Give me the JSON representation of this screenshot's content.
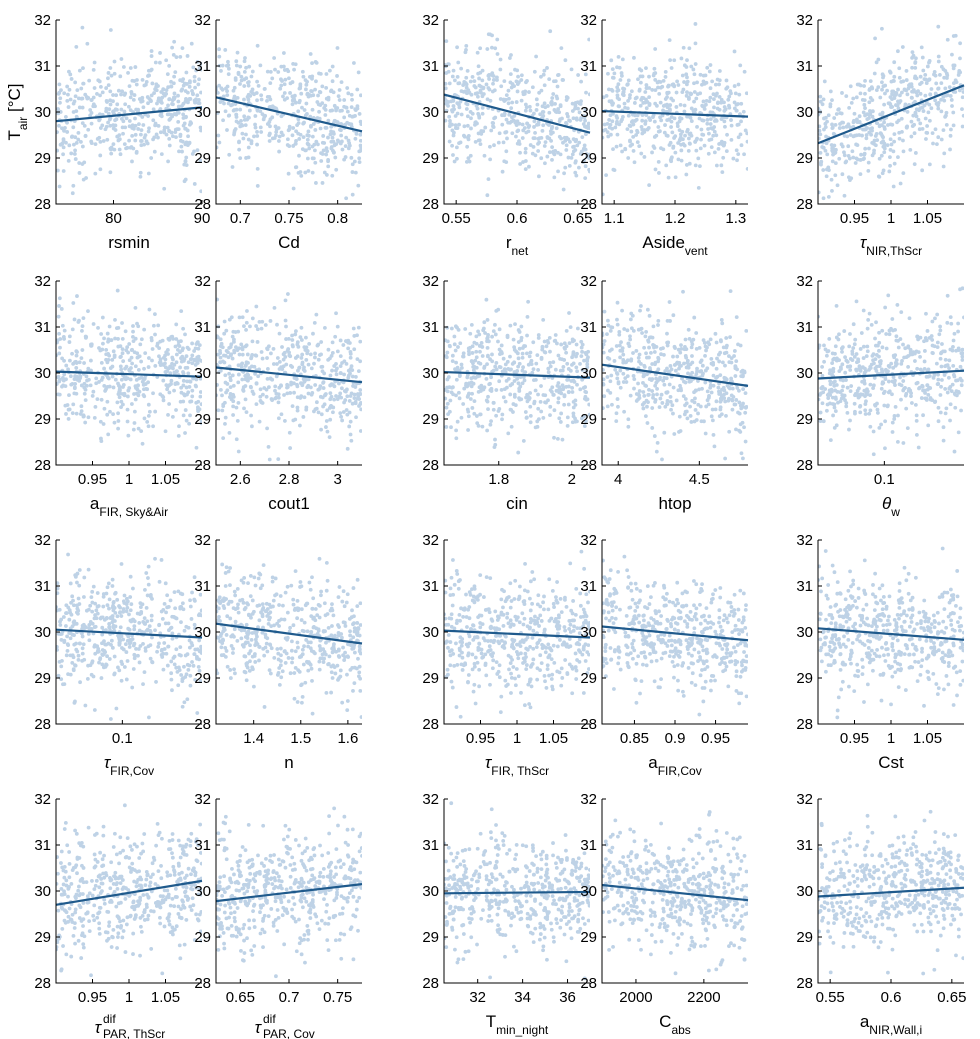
{
  "figure": {
    "ylabel_main": "T",
    "ylabel_sub": "air",
    "ylabel_tail": " [°C]",
    "points_per_panel": 500
  },
  "chart_data": [
    {
      "type": "scatter",
      "xlabel": {
        "main": "rsmin"
      },
      "xlim": [
        73.5,
        90
      ],
      "xticks": [
        80,
        90
      ],
      "ylim": [
        28,
        32
      ],
      "yticks": [
        28,
        29,
        30,
        31,
        32
      ],
      "trend": [
        [
          73.5,
          29.8
        ],
        [
          90,
          30.1
        ]
      ]
    },
    {
      "type": "scatter",
      "xlabel": {
        "main": "Cd"
      },
      "xlim": [
        0.675,
        0.825
      ],
      "xticks": [
        0.7,
        0.75,
        0.8
      ],
      "ylim": [
        28,
        32
      ],
      "yticks": [
        28,
        29,
        30,
        31,
        32
      ],
      "trend": [
        [
          0.675,
          30.32
        ],
        [
          0.825,
          29.58
        ]
      ]
    },
    {
      "type": "scatter",
      "xlabel": {
        "main": "r",
        "sub": "net"
      },
      "xlim": [
        0.54,
        0.66
      ],
      "xticks": [
        0.55,
        0.6,
        0.65
      ],
      "ylim": [
        28,
        32
      ],
      "yticks": [
        28,
        29,
        30,
        31,
        32
      ],
      "trend": [
        [
          0.54,
          30.38
        ],
        [
          0.66,
          29.55
        ]
      ]
    },
    {
      "type": "scatter",
      "xlabel": {
        "main": "Aside",
        "sub": "vent"
      },
      "xlim": [
        1.08,
        1.32
      ],
      "xticks": [
        1.1,
        1.2,
        1.3
      ],
      "ylim": [
        28,
        32
      ],
      "yticks": [
        28,
        29,
        30,
        31,
        32
      ],
      "trend": [
        [
          1.08,
          30.02
        ],
        [
          1.32,
          29.9
        ]
      ]
    },
    {
      "type": "scatter",
      "xlabel": {
        "main": "τ",
        "sub": "NIR,ThScr",
        "italic": true
      },
      "xlim": [
        0.9,
        1.1
      ],
      "xticks": [
        0.95,
        1,
        1.05
      ],
      "ylim": [
        28,
        32
      ],
      "yticks": [
        28,
        29,
        30,
        31,
        32
      ],
      "trend": [
        [
          0.9,
          29.32
        ],
        [
          1.1,
          30.58
        ]
      ]
    },
    {
      "type": "scatter",
      "xlabel": {
        "main": "a",
        "sub": "FIR, Sky&Air"
      },
      "xlim": [
        0.9,
        1.1
      ],
      "xticks": [
        0.95,
        1,
        1.05
      ],
      "ylim": [
        28,
        32
      ],
      "yticks": [
        28,
        29,
        30,
        31,
        32
      ],
      "trend": [
        [
          0.9,
          30.03
        ],
        [
          1.1,
          29.92
        ]
      ]
    },
    {
      "type": "scatter",
      "xlabel": {
        "main": "cout1"
      },
      "xlim": [
        2.5,
        3.1
      ],
      "xticks": [
        2.6,
        2.8,
        3
      ],
      "ylim": [
        28,
        32
      ],
      "yticks": [
        28,
        29,
        30,
        31,
        32
      ],
      "trend": [
        [
          2.5,
          30.12
        ],
        [
          3.1,
          29.8
        ]
      ]
    },
    {
      "type": "scatter",
      "xlabel": {
        "main": "cin"
      },
      "xlim": [
        1.65,
        2.05
      ],
      "xticks": [
        1.8,
        2
      ],
      "ylim": [
        28,
        32
      ],
      "yticks": [
        28,
        29,
        30,
        31,
        32
      ],
      "trend": [
        [
          1.65,
          30.02
        ],
        [
          2.05,
          29.9
        ]
      ]
    },
    {
      "type": "scatter",
      "xlabel": {
        "main": "htop"
      },
      "xlim": [
        3.9,
        4.8
      ],
      "xticks": [
        4,
        4.5
      ],
      "ylim": [
        28,
        32
      ],
      "yticks": [
        28,
        29,
        30,
        31,
        32
      ],
      "trend": [
        [
          3.9,
          30.18
        ],
        [
          4.8,
          29.72
        ]
      ]
    },
    {
      "type": "scatter",
      "xlabel": {
        "main": "θ",
        "sub": "w",
        "italic": true
      },
      "xlim": [
        0.075,
        0.13
      ],
      "xticks": [
        0.1
      ],
      "ylim": [
        28,
        32
      ],
      "yticks": [
        28,
        29,
        30,
        31,
        32
      ],
      "trend": [
        [
          0.075,
          29.88
        ],
        [
          0.13,
          30.05
        ]
      ]
    },
    {
      "type": "scatter",
      "xlabel": {
        "main": "τ",
        "sub": "FIR,Cov",
        "italic": true
      },
      "xlim": [
        0.075,
        0.13
      ],
      "xticks": [
        0.1
      ],
      "ylim": [
        28,
        32
      ],
      "yticks": [
        28,
        29,
        30,
        31,
        32
      ],
      "trend": [
        [
          0.075,
          30.05
        ],
        [
          0.13,
          29.88
        ]
      ]
    },
    {
      "type": "scatter",
      "xlabel": {
        "main": "n"
      },
      "xlim": [
        1.32,
        1.63
      ],
      "xticks": [
        1.4,
        1.5,
        1.6
      ],
      "ylim": [
        28,
        32
      ],
      "yticks": [
        28,
        29,
        30,
        31,
        32
      ],
      "trend": [
        [
          1.32,
          30.18
        ],
        [
          1.63,
          29.75
        ]
      ]
    },
    {
      "type": "scatter",
      "xlabel": {
        "main": "τ",
        "sub": "FIR, ThScr",
        "italic": true
      },
      "xlim": [
        0.9,
        1.1
      ],
      "xticks": [
        0.95,
        1,
        1.05
      ],
      "ylim": [
        28,
        32
      ],
      "yticks": [
        28,
        29,
        30,
        31,
        32
      ],
      "trend": [
        [
          0.9,
          30.03
        ],
        [
          1.1,
          29.88
        ]
      ]
    },
    {
      "type": "scatter",
      "xlabel": {
        "main": "a",
        "sub": "FIR,Cov"
      },
      "xlim": [
        0.81,
        0.99
      ],
      "xticks": [
        0.85,
        0.9,
        0.95
      ],
      "ylim": [
        28,
        32
      ],
      "yticks": [
        28,
        29,
        30,
        31,
        32
      ],
      "trend": [
        [
          0.81,
          30.12
        ],
        [
          0.99,
          29.82
        ]
      ]
    },
    {
      "type": "scatter",
      "xlabel": {
        "main": "Cst"
      },
      "xlim": [
        0.9,
        1.1
      ],
      "xticks": [
        0.95,
        1,
        1.05
      ],
      "ylim": [
        28,
        32
      ],
      "yticks": [
        28,
        29,
        30,
        31,
        32
      ],
      "trend": [
        [
          0.9,
          30.08
        ],
        [
          1.1,
          29.83
        ]
      ]
    },
    {
      "type": "scatter",
      "xlabel": {
        "main": "τ",
        "sup": "dif",
        "sub": "PAR, ThScr",
        "italic": true
      },
      "xlim": [
        0.9,
        1.1
      ],
      "xticks": [
        0.95,
        1,
        1.05
      ],
      "ylim": [
        28,
        32
      ],
      "yticks": [
        28,
        29,
        30,
        31,
        32
      ],
      "trend": [
        [
          0.9,
          29.7
        ],
        [
          1.1,
          30.22
        ]
      ]
    },
    {
      "type": "scatter",
      "xlabel": {
        "main": "τ",
        "sup": "dif",
        "sub": "PAR, Cov",
        "italic": true
      },
      "xlim": [
        0.625,
        0.775
      ],
      "xticks": [
        0.65,
        0.7,
        0.75
      ],
      "ylim": [
        28,
        32
      ],
      "yticks": [
        28,
        29,
        30,
        31,
        32
      ],
      "trend": [
        [
          0.625,
          29.78
        ],
        [
          0.775,
          30.15
        ]
      ]
    },
    {
      "type": "scatter",
      "xlabel": {
        "main": "T",
        "sub": "min_night"
      },
      "xlim": [
        30.5,
        37
      ],
      "xticks": [
        32,
        34,
        36
      ],
      "ylim": [
        28,
        32
      ],
      "yticks": [
        28,
        29,
        30,
        31,
        32
      ],
      "trend": [
        [
          30.5,
          29.95
        ],
        [
          37,
          29.98
        ]
      ]
    },
    {
      "type": "scatter",
      "xlabel": {
        "main": "C",
        "sub": "abs"
      },
      "xlim": [
        1900,
        2330
      ],
      "xticks": [
        2000,
        2200
      ],
      "ylim": [
        28,
        32
      ],
      "yticks": [
        28,
        29,
        30,
        31,
        32
      ],
      "trend": [
        [
          1900,
          30.13
        ],
        [
          2330,
          29.8
        ]
      ]
    },
    {
      "type": "scatter",
      "xlabel": {
        "main": "a",
        "sub": "NIR,Wall,i"
      },
      "xlim": [
        0.54,
        0.66
      ],
      "xticks": [
        0.55,
        0.6,
        0.65
      ],
      "ylim": [
        28,
        32
      ],
      "yticks": [
        28,
        29,
        30,
        31,
        32
      ],
      "trend": [
        [
          0.54,
          29.88
        ],
        [
          0.66,
          30.07
        ]
      ]
    }
  ]
}
